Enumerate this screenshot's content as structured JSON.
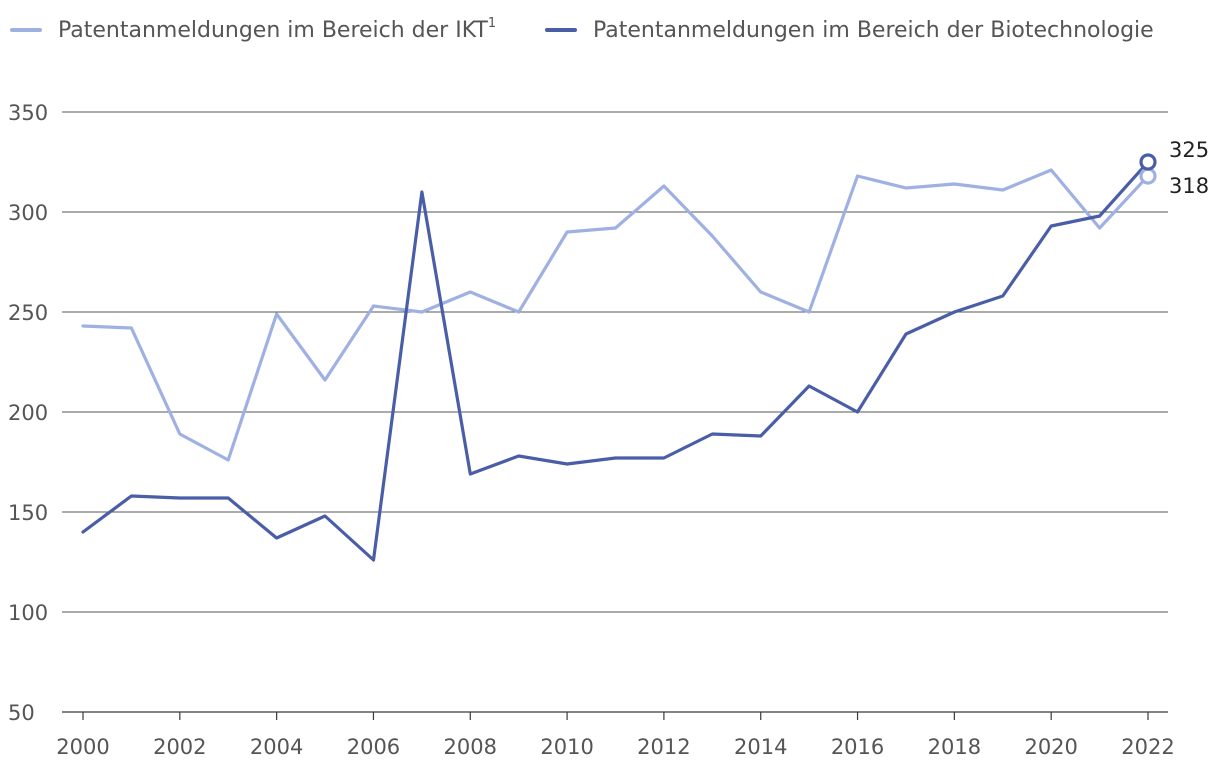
{
  "chart_data": {
    "type": "line",
    "title": "",
    "xlabel": "",
    "ylabel": "",
    "ylim": [
      50,
      350
    ],
    "yticks": [
      50,
      100,
      150,
      200,
      250,
      300,
      350
    ],
    "xlim": [
      2000,
      2022
    ],
    "xticks": [
      2000,
      2002,
      2004,
      2006,
      2008,
      2010,
      2012,
      2014,
      2016,
      2018,
      2020,
      2022
    ],
    "grid": true,
    "legend_position": "top",
    "x": [
      2000,
      2001,
      2002,
      2003,
      2004,
      2005,
      2006,
      2007,
      2008,
      2009,
      2010,
      2011,
      2012,
      2013,
      2014,
      2015,
      2016,
      2017,
      2018,
      2019,
      2020,
      2021,
      2022
    ],
    "series": [
      {
        "name": "Patentanmeldungen im Bereich der IKT",
        "legend_label": "Patentanmeldungen im Bereich der IKT",
        "legend_sup": "1",
        "color": "#9fb0e3",
        "values": [
          243,
          242,
          189,
          176,
          249,
          216,
          253,
          250,
          260,
          250,
          290,
          292,
          313,
          288,
          260,
          250,
          318,
          312,
          314,
          311,
          321,
          292,
          318
        ],
        "end_label": "318"
      },
      {
        "name": "Patentanmeldungen im Bereich der Biotechnologie",
        "legend_label": "Patentanmeldungen im Bereich der Biotechnologie",
        "color": "#4a5ea8",
        "values": [
          140,
          158,
          157,
          157,
          137,
          148,
          126,
          310,
          169,
          178,
          174,
          177,
          177,
          189,
          188,
          213,
          200,
          239,
          250,
          258,
          293,
          298,
          325
        ],
        "end_label": "325"
      }
    ]
  }
}
